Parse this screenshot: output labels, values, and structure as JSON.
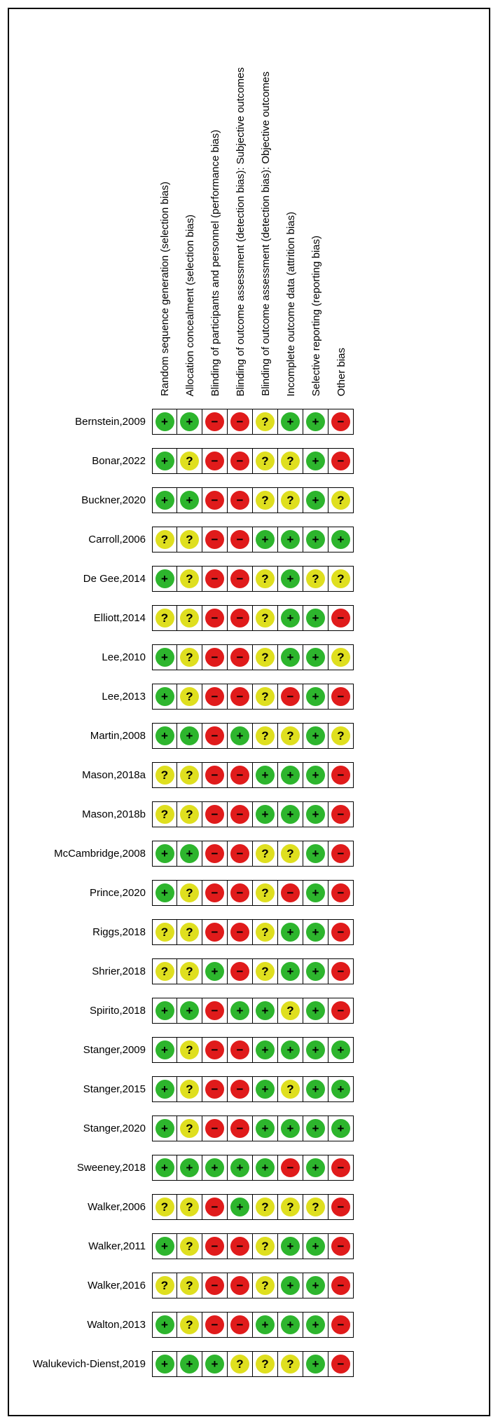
{
  "figure": {
    "kind": "risk-of-bias-summary"
  },
  "chart_data": {
    "type": "heatmap",
    "columns": [
      "Random sequence generation (selection bias)",
      "Allocation concealment (selection bias)",
      "Blinding of participants and personnel (performance bias)",
      "Blinding of outcome assessment (detection bias): Subjective outcomes",
      "Blinding of outcome assessment (detection bias): Objective outcomes",
      "Incomplete outcome data (attrition bias)",
      "Selective reporting (reporting bias)",
      "Other bias"
    ],
    "symbol_colors": {
      "+": "#2DB52D",
      "?": "#DFDF1F",
      "-": "#E01B1B"
    },
    "rows": [
      {
        "study": "Bernstein,2009",
        "judgments": [
          "+",
          "+",
          "-",
          "-",
          "?",
          "+",
          "+",
          "-"
        ]
      },
      {
        "study": "Bonar,2022",
        "judgments": [
          "+",
          "?",
          "-",
          "-",
          "?",
          "?",
          "+",
          "-"
        ]
      },
      {
        "study": "Buckner,2020",
        "judgments": [
          "+",
          "+",
          "-",
          "-",
          "?",
          "?",
          "+",
          "?"
        ]
      },
      {
        "study": "Carroll,2006",
        "judgments": [
          "?",
          "?",
          "-",
          "-",
          "+",
          "+",
          "+",
          "+"
        ]
      },
      {
        "study": "De Gee,2014",
        "judgments": [
          "+",
          "?",
          "-",
          "-",
          "?",
          "+",
          "?",
          "?"
        ]
      },
      {
        "study": "Elliott,2014",
        "judgments": [
          "?",
          "?",
          "-",
          "-",
          "?",
          "+",
          "+",
          "-"
        ]
      },
      {
        "study": "Lee,2010",
        "judgments": [
          "+",
          "?",
          "-",
          "-",
          "?",
          "+",
          "+",
          "?"
        ]
      },
      {
        "study": "Lee,2013",
        "judgments": [
          "+",
          "?",
          "-",
          "-",
          "?",
          "-",
          "+",
          "-"
        ]
      },
      {
        "study": "Martin,2008",
        "judgments": [
          "+",
          "+",
          "-",
          "+",
          "?",
          "?",
          "+",
          "?"
        ]
      },
      {
        "study": "Mason,2018a",
        "judgments": [
          "?",
          "?",
          "-",
          "-",
          "+",
          "+",
          "+",
          "-"
        ]
      },
      {
        "study": "Mason,2018b",
        "judgments": [
          "?",
          "?",
          "-",
          "-",
          "+",
          "+",
          "+",
          "-"
        ]
      },
      {
        "study": "McCambridge,2008",
        "judgments": [
          "+",
          "+",
          "-",
          "-",
          "?",
          "?",
          "+",
          "-"
        ]
      },
      {
        "study": "Prince,2020",
        "judgments": [
          "+",
          "?",
          "-",
          "-",
          "?",
          "-",
          "+",
          "-"
        ]
      },
      {
        "study": "Riggs,2018",
        "judgments": [
          "?",
          "?",
          "-",
          "-",
          "?",
          "+",
          "+",
          "-"
        ]
      },
      {
        "study": "Shrier,2018",
        "judgments": [
          "?",
          "?",
          "+",
          "-",
          "?",
          "+",
          "+",
          "-"
        ]
      },
      {
        "study": "Spirito,2018",
        "judgments": [
          "+",
          "+",
          "-",
          "+",
          "+",
          "?",
          "+",
          "-"
        ]
      },
      {
        "study": "Stanger,2009",
        "judgments": [
          "+",
          "?",
          "-",
          "-",
          "+",
          "+",
          "+",
          "+"
        ]
      },
      {
        "study": "Stanger,2015",
        "judgments": [
          "+",
          "?",
          "-",
          "-",
          "+",
          "?",
          "+",
          "+"
        ]
      },
      {
        "study": "Stanger,2020",
        "judgments": [
          "+",
          "?",
          "-",
          "-",
          "+",
          "+",
          "+",
          "+"
        ]
      },
      {
        "study": "Sweeney,2018",
        "judgments": [
          "+",
          "+",
          "+",
          "+",
          "+",
          "-",
          "+",
          "-"
        ]
      },
      {
        "study": "Walker,2006",
        "judgments": [
          "?",
          "?",
          "-",
          "+",
          "?",
          "?",
          "?",
          "-"
        ]
      },
      {
        "study": "Walker,2011",
        "judgments": [
          "+",
          "?",
          "-",
          "-",
          "?",
          "+",
          "+",
          "-"
        ]
      },
      {
        "study": "Walker,2016",
        "judgments": [
          "?",
          "?",
          "-",
          "-",
          "?",
          "+",
          "+",
          "-"
        ]
      },
      {
        "study": "Walton,2013",
        "judgments": [
          "+",
          "?",
          "-",
          "-",
          "+",
          "+",
          "+",
          "-"
        ]
      },
      {
        "study": "Walukevich-Dienst,2019",
        "judgments": [
          "+",
          "+",
          "+",
          "?",
          "?",
          "?",
          "+",
          "-"
        ]
      }
    ]
  }
}
